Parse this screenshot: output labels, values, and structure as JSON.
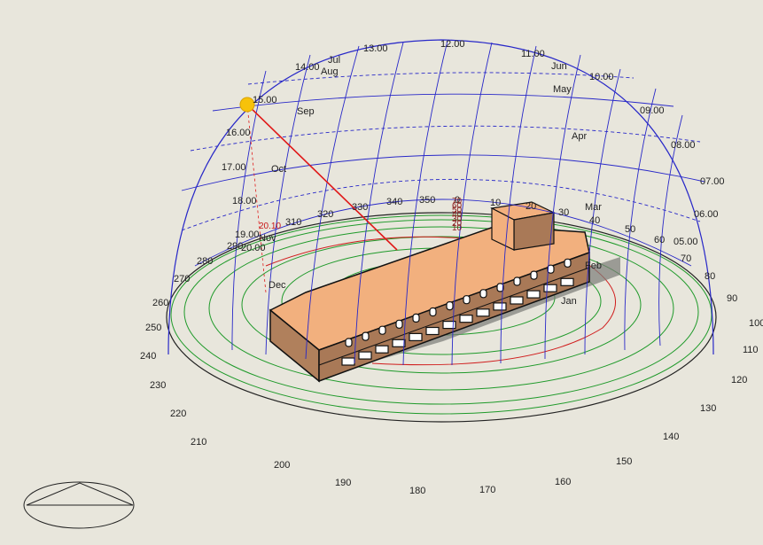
{
  "colors": {
    "background": "#e8e6dc",
    "sun_path_grid": "#2828c8",
    "ground_rings": "#1f9a2a",
    "sun_ray": "#e01818",
    "sun": "#f7c20a",
    "building_roof": "#f2b07e",
    "building_wall": "#a97957",
    "shadow": "#7a7a76"
  },
  "hour_labels": [
    "09.00",
    "10.00",
    "11.00",
    "12.00",
    "13.00",
    "14.00",
    "15.00",
    "16.00",
    "17.00",
    "18.00",
    "07.00",
    "08.00",
    "06.00",
    "05.00",
    "19.00",
    "20.00"
  ],
  "month_labels": [
    "Jun",
    "Jul",
    "Aug",
    "May",
    "Sep",
    "Apr",
    "Oct",
    "Mar",
    "Nov",
    "Feb",
    "Dec",
    "Jan"
  ],
  "inner_azimuth_labels": [
    "310",
    "320",
    "330",
    "340",
    "350",
    "0",
    "10",
    "20",
    "30",
    "40",
    "50",
    "60",
    "290",
    "280"
  ],
  "altitude_labels": [
    "70",
    "60",
    "50",
    "40",
    "30",
    "20",
    "10"
  ],
  "small_red_label": "20.10",
  "azimuth_labels": [
    "270",
    "260",
    "250",
    "240",
    "230",
    "220",
    "210",
    "200",
    "190",
    "180",
    "170",
    "160",
    "150",
    "140",
    "130",
    "120",
    "110",
    "100",
    "90",
    "80",
    "70"
  ]
}
